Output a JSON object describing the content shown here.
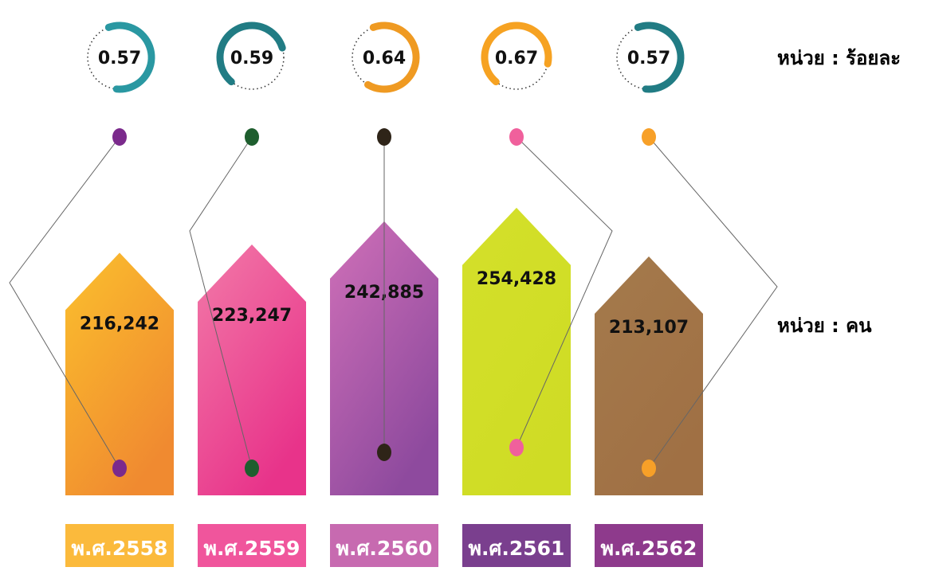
{
  "chart_data": {
    "type": "house-bar",
    "categories": [
      "พ.ศ.2558",
      "พ.ศ.2559",
      "พ.ศ.2560",
      "พ.ศ.2561",
      "พ.ศ.2562"
    ],
    "values": [
      216242,
      223247,
      242885,
      254428,
      213107
    ],
    "value_labels": [
      "216,242",
      "223,247",
      "242,885",
      "254,428",
      "213,107"
    ],
    "percent_values": [
      0.57,
      0.59,
      0.64,
      0.67,
      0.57
    ],
    "percent_unit": "หน่วย : ร้อยละ",
    "value_unit": "หน่วย : คน",
    "bar_colors": [
      [
        "#fbc02d",
        "#f08a30"
      ],
      [
        "#f27aa8",
        "#e8338a"
      ],
      [
        "#d070b8",
        "#8e4a9e"
      ],
      [
        "#d4e02a",
        "#cfdc25"
      ],
      [
        "#a47a4c",
        "#a07044"
      ]
    ],
    "ring_colors": [
      "#2a98a2",
      "#217c84",
      "#ef9a22",
      "#f6a222",
      "#217c84"
    ],
    "dot_colors": [
      "#7b2a8c",
      "#1e5e2e",
      "#2e2418",
      "#f0609c",
      "#f7a028"
    ],
    "label_colors": [
      "#fbba3c",
      "#f0559c",
      "#c76ab0",
      "#7a3f8e",
      "#8e3a8c"
    ]
  }
}
